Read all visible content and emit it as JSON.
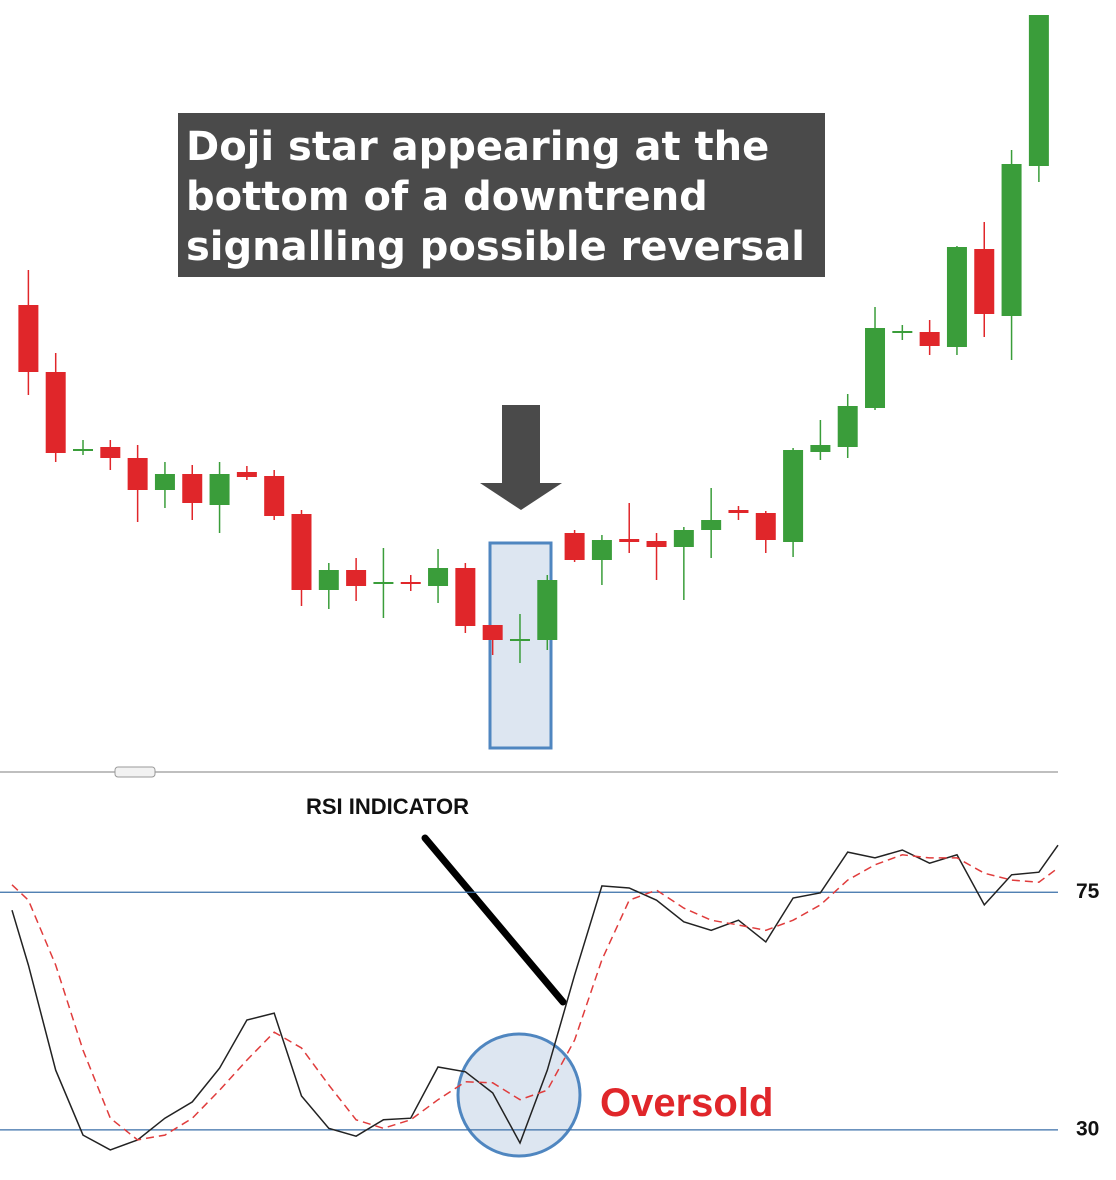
{
  "chart_data": [
    {
      "type": "candlestick",
      "annotation": [
        "Doji star appearing at the",
        "bottom of a downtrend",
        "signalling possible reversal"
      ],
      "x": [
        0,
        1,
        2,
        3,
        4,
        5,
        6,
        7,
        8,
        9,
        10,
        11,
        12,
        13,
        14,
        15,
        16,
        17,
        18,
        19,
        20,
        21,
        22,
        23,
        24,
        25,
        26,
        27,
        28,
        29,
        30,
        31,
        32,
        33,
        34,
        35,
        36,
        37
      ],
      "open": [
        495,
        428,
        349,
        353,
        342,
        310,
        326,
        295,
        328,
        324,
        286,
        210,
        230,
        216,
        218,
        214,
        232,
        175,
        159,
        160,
        267,
        240,
        261,
        259,
        253,
        270,
        290,
        287,
        258,
        348,
        353,
        392,
        467,
        468,
        453,
        551,
        484,
        634
      ],
      "high": [
        530,
        447,
        360,
        360,
        355,
        338,
        335,
        338,
        334,
        330,
        290,
        237,
        242,
        252,
        225,
        251,
        237,
        175,
        186,
        225,
        270,
        265,
        297,
        267,
        273,
        312,
        294,
        289,
        352,
        380,
        406,
        493,
        475,
        480,
        554,
        578,
        650,
        785
      ],
      "low": [
        405,
        338,
        345,
        330,
        278,
        292,
        280,
        267,
        320,
        280,
        194,
        191,
        199,
        182,
        209,
        197,
        167,
        145,
        137,
        150,
        238,
        215,
        247,
        220,
        200,
        242,
        280,
        247,
        243,
        340,
        342,
        390,
        460,
        445,
        445,
        463,
        440,
        618
      ],
      "close": [
        428,
        347,
        351,
        342,
        310,
        326,
        297,
        326,
        323,
        284,
        210,
        230,
        214,
        218,
        216,
        232,
        174,
        160,
        161,
        220,
        240,
        260,
        258,
        253,
        270,
        280,
        287,
        260,
        350,
        355,
        394,
        472,
        469,
        454,
        553,
        486,
        636,
        785
      ],
      "up_color": "#3a9d3a",
      "down_color": "#e0262a",
      "xlim": [
        -0.6,
        37.7
      ],
      "ylim": [
        40,
        800
      ]
    },
    {
      "type": "line",
      "title": "RSI INDICATOR",
      "annotation": "Oversold",
      "x": [
        -0.6,
        0,
        1,
        2,
        3,
        4,
        5,
        6,
        7,
        8,
        9,
        10,
        11,
        12,
        13,
        14,
        15,
        16,
        17,
        18,
        19,
        20,
        21,
        22,
        23,
        24,
        25,
        26,
        27,
        28,
        29,
        30,
        31,
        32,
        33,
        34,
        35,
        36,
        37,
        37.7
      ],
      "series": [
        {
          "color": "#222222",
          "dash": false,
          "values": [
            71.6,
            61.2,
            41.3,
            29.0,
            26.2,
            28.1,
            32.2,
            35.3,
            41.7,
            50.8,
            52.1,
            36.4,
            30.3,
            28.8,
            31.9,
            32.2,
            41.9,
            41.0,
            37.0,
            27.5,
            41.3,
            59.3,
            76.2,
            75.8,
            73.5,
            69.4,
            67.8,
            69.7,
            65.6,
            73.9,
            74.9,
            82.6,
            81.5,
            83.0,
            80.5,
            82.1,
            72.6,
            78.3,
            78.8,
            83.9
          ]
        },
        {
          "color": "#e03c3c",
          "dash": true,
          "values": [
            76.4,
            73.5,
            61.2,
            45.1,
            32.2,
            28.1,
            29.0,
            32.2,
            37.5,
            43.2,
            48.5,
            45.5,
            38.5,
            31.9,
            30.3,
            31.9,
            35.7,
            39.1,
            38.9,
            35.7,
            37.5,
            47.0,
            62.2,
            73.5,
            75.4,
            72.0,
            69.7,
            68.8,
            67.8,
            69.7,
            72.6,
            77.3,
            80.2,
            82.1,
            81.5,
            81.5,
            78.6,
            77.3,
            76.9,
            79.6
          ]
        }
      ],
      "xlim": [
        -0.6,
        37.7
      ],
      "ylim": [
        20.5,
        95.5
      ],
      "yticks": [
        30,
        75
      ],
      "level_color": "#3a6fa8"
    }
  ]
}
